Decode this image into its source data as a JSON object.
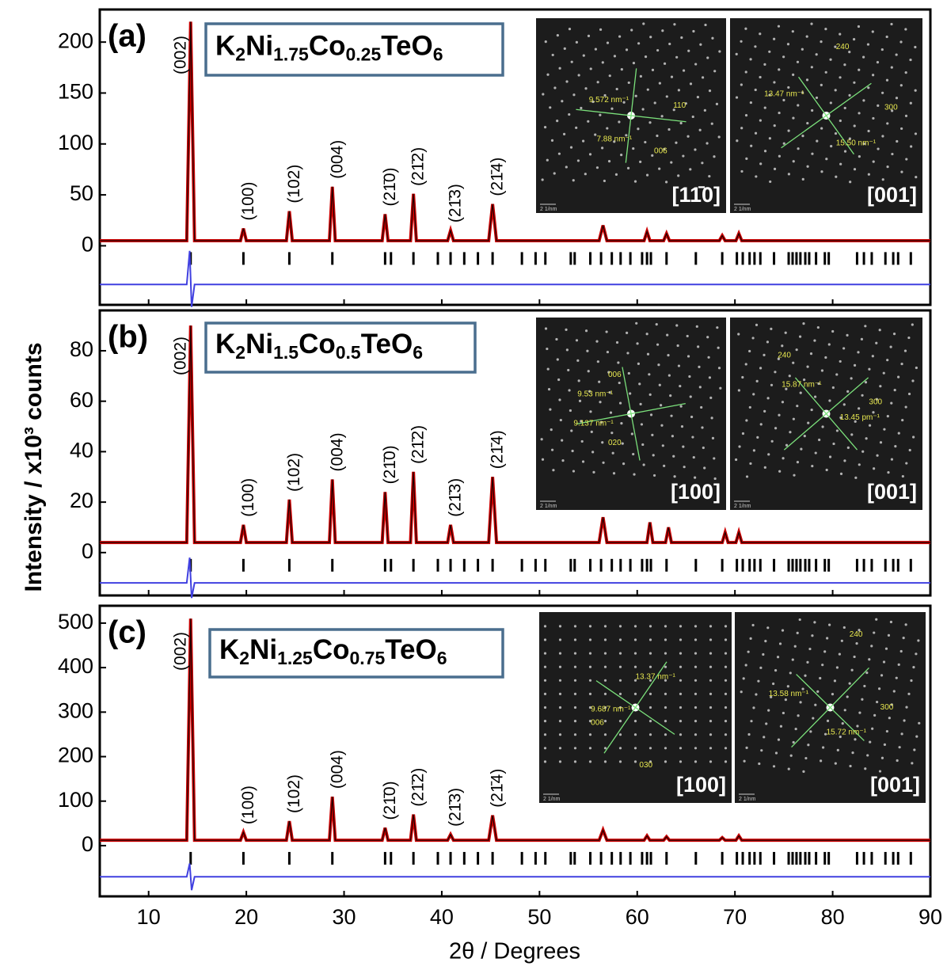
{
  "chart_data": [
    {
      "type": "line",
      "panel_label": "(a)",
      "formula": [
        "K",
        "2",
        "Ni",
        "1.75",
        "Co",
        "0.25",
        "TeO",
        "6"
      ],
      "xlim": [
        5,
        90
      ],
      "xticks": [
        10,
        20,
        30,
        40,
        50,
        60,
        70,
        80,
        90
      ],
      "ylim": [
        -58,
        232
      ],
      "yticks": [
        0,
        50,
        100,
        150,
        200
      ],
      "series": [
        {
          "color": "#cc0000",
          "x": [
            5,
            13.9,
            14.3,
            14.7,
            19.4,
            19.7,
            20.0,
            24.1,
            24.4,
            24.7,
            28.5,
            28.8,
            29.1,
            33.9,
            34.2,
            34.5,
            36.8,
            37.1,
            37.4,
            40.6,
            40.9,
            41.2,
            44.8,
            45.2,
            45.6,
            56.1,
            56.5,
            56.9,
            60.7,
            61.0,
            61.3,
            62.7,
            63.0,
            63.3,
            68.4,
            68.7,
            69.0,
            70.1,
            70.4,
            70.7,
            90
          ],
          "values": [
            5,
            5,
            220,
            5,
            5,
            17,
            5,
            5,
            34,
            5,
            5,
            58,
            5,
            5,
            31,
            5,
            5,
            51,
            5,
            5,
            15,
            5,
            5,
            41,
            5,
            5,
            20,
            5,
            5,
            14,
            5,
            5,
            12,
            5,
            5,
            10,
            5,
            5,
            12,
            5,
            5
          ]
        },
        {
          "color": "#4040e0",
          "x": [
            5,
            13.9,
            14.2,
            14.4,
            14.7,
            90
          ],
          "values": [
            -38,
            -38,
            -5,
            -60,
            -38,
            -38
          ]
        }
      ],
      "bragg_positions": [
        14.3,
        19.7,
        24.4,
        28.8,
        34.2,
        34.8,
        37.1,
        39.6,
        40.9,
        42.3,
        43.7,
        45.2,
        48.2,
        49.6,
        50.6,
        53.2,
        53.6,
        55.2,
        56.3,
        57.4,
        58.3,
        59.3,
        60.5,
        61.0,
        61.4,
        63.0,
        66.0,
        68.7,
        70.2,
        70.8,
        71.5,
        72.0,
        72.6,
        74.0,
        75.5,
        75.9,
        76.3,
        76.7,
        77.2,
        77.6,
        78.3,
        79.2,
        79.6,
        82.5,
        83.2,
        84.0,
        85.4,
        86.2,
        86.7,
        88.0
      ],
      "hkl_labels": [
        "(002)",
        "(100)",
        "(102)",
        "(004)",
        "(21̄0)",
        "(21̄2)",
        "(21̄3)",
        "(21̄4)"
      ],
      "insets": [
        {
          "zone": "[11̄0]",
          "scale": "2 1/nm",
          "labels": [
            "9.572 nm⁻¹",
            "110",
            "7.88 nm⁻¹",
            "006"
          ]
        },
        {
          "zone": "[001]",
          "scale": "2 1/nm",
          "labels": [
            "240",
            "13.47 nm⁻¹",
            "300",
            "15.50 nm⁻¹"
          ]
        }
      ]
    },
    {
      "type": "line",
      "panel_label": "(b)",
      "formula": [
        "K",
        "2",
        "Ni",
        "1.5",
        "Co",
        "0.5",
        "TeO",
        "6"
      ],
      "ylabel": "Intensity / x10³ counts",
      "xlim": [
        5,
        90
      ],
      "xticks": [
        10,
        20,
        30,
        40,
        50,
        60,
        70,
        80,
        90
      ],
      "ylim": [
        -17,
        96
      ],
      "yticks": [
        0,
        20,
        40,
        60,
        80
      ],
      "series": [
        {
          "color": "#cc0000",
          "x": [
            5,
            13.9,
            14.3,
            14.7,
            19.4,
            19.7,
            20.0,
            24.1,
            24.4,
            24.7,
            28.5,
            28.8,
            29.1,
            33.9,
            34.2,
            34.5,
            36.8,
            37.1,
            37.4,
            40.6,
            40.9,
            41.2,
            44.8,
            45.2,
            45.6,
            56.1,
            56.5,
            56.9,
            61.0,
            61.3,
            61.6,
            62.9,
            63.2,
            63.5,
            68.7,
            69.0,
            69.3,
            70.1,
            70.4,
            70.7,
            90
          ],
          "values": [
            4,
            4,
            90,
            4,
            4,
            11,
            4,
            4,
            21,
            4,
            4,
            29,
            4,
            4,
            24,
            4,
            4,
            32,
            4,
            4,
            11,
            4,
            4,
            30,
            4,
            4,
            14,
            4,
            4,
            12,
            4,
            4,
            10,
            4,
            4,
            8,
            4,
            4,
            8,
            4,
            4
          ]
        },
        {
          "color": "#4040e0",
          "x": [
            5,
            13.9,
            14.2,
            14.4,
            14.7,
            90
          ],
          "values": [
            -12,
            -12,
            -2,
            -18,
            -12,
            -12
          ]
        }
      ],
      "bragg_positions": [
        14.3,
        19.7,
        24.4,
        28.8,
        34.2,
        34.8,
        37.1,
        39.6,
        40.9,
        42.3,
        43.7,
        45.2,
        48.2,
        49.6,
        50.6,
        53.2,
        53.6,
        55.2,
        56.3,
        57.4,
        58.3,
        59.3,
        60.5,
        61.0,
        61.4,
        63.0,
        66.0,
        68.7,
        70.2,
        70.8,
        71.5,
        72.0,
        72.6,
        74.0,
        75.5,
        75.9,
        76.3,
        76.7,
        77.2,
        77.6,
        78.3,
        79.2,
        79.6,
        82.5,
        83.2,
        84.0,
        85.4,
        86.2,
        86.7,
        88.0
      ],
      "hkl_labels": [
        "(002)",
        "(100)",
        "(102)",
        "(004)",
        "(21̄0)",
        "(21̄2)",
        "(21̄3)",
        "(21̄4)"
      ],
      "insets": [
        {
          "zone": "[100]",
          "scale": "2 1/nm",
          "labels": [
            "006",
            "9.53 nm⁻¹",
            "9.137 nm⁻¹",
            "020"
          ]
        },
        {
          "zone": "[001]",
          "scale": "2 1/nm",
          "labels": [
            "240",
            "15.87 nm⁻¹",
            "300",
            "13.45 pm⁻¹"
          ]
        }
      ]
    },
    {
      "type": "line",
      "panel_label": "(c)",
      "formula": [
        "K",
        "2",
        "Ni",
        "1.25",
        "Co",
        "0.75",
        "TeO",
        "6"
      ],
      "xlabel": "2θ / Degrees",
      "xlim": [
        5,
        90
      ],
      "xticks": [
        10,
        20,
        30,
        40,
        50,
        60,
        70,
        80,
        90
      ],
      "ylim": [
        -114,
        539
      ],
      "yticks": [
        0,
        100,
        200,
        300,
        400,
        500
      ],
      "series": [
        {
          "color": "#cc0000",
          "x": [
            5,
            13.9,
            14.3,
            14.7,
            19.4,
            19.7,
            20.0,
            24.1,
            24.4,
            24.7,
            28.5,
            28.8,
            29.1,
            33.9,
            34.2,
            34.5,
            36.8,
            37.1,
            37.4,
            40.6,
            40.9,
            41.2,
            44.8,
            45.2,
            45.6,
            56.1,
            56.5,
            56.9,
            60.7,
            61.0,
            61.3,
            62.7,
            63.0,
            63.3,
            68.4,
            68.7,
            69.0,
            70.1,
            70.4,
            70.7,
            90
          ],
          "values": [
            12,
            12,
            510,
            12,
            12,
            30,
            12,
            12,
            55,
            12,
            12,
            110,
            12,
            12,
            40,
            12,
            12,
            70,
            12,
            12,
            25,
            12,
            12,
            68,
            12,
            12,
            35,
            12,
            12,
            22,
            12,
            12,
            20,
            12,
            12,
            18,
            12,
            12,
            22,
            12,
            12
          ]
        },
        {
          "color": "#4040e0",
          "x": [
            5,
            13.9,
            14.2,
            14.4,
            14.7,
            90
          ],
          "values": [
            -70,
            -70,
            -40,
            -100,
            -70,
            -70
          ]
        }
      ],
      "bragg_positions": [
        14.3,
        19.7,
        24.4,
        28.8,
        34.2,
        34.8,
        37.1,
        39.6,
        40.9,
        42.3,
        43.7,
        45.2,
        48.2,
        49.6,
        50.6,
        53.2,
        53.6,
        55.2,
        56.3,
        57.4,
        58.3,
        59.3,
        60.5,
        61.0,
        61.4,
        63.0,
        66.0,
        68.7,
        70.2,
        70.8,
        71.5,
        72.0,
        72.6,
        74.0,
        75.5,
        75.9,
        76.3,
        76.7,
        77.2,
        77.6,
        78.3,
        79.2,
        79.6,
        82.5,
        83.2,
        84.0,
        85.4,
        86.2,
        86.7,
        88.0
      ],
      "hkl_labels": [
        "(002)",
        "(100)",
        "(102)",
        "(004)",
        "(21̄0)",
        "(21̄2)",
        "(21̄3)",
        "(21̄4)"
      ],
      "insets": [
        {
          "zone": "[100]",
          "scale": "2 1/nm",
          "labels": [
            "13.37 nm⁻¹",
            "9.687 nm⁻¹",
            "006",
            "030"
          ]
        },
        {
          "zone": "[001]",
          "scale": "2 1/nm",
          "labels": [
            "240",
            "13.58 nm⁻¹",
            "300",
            "15.72 nm⁻¹"
          ]
        }
      ]
    }
  ]
}
